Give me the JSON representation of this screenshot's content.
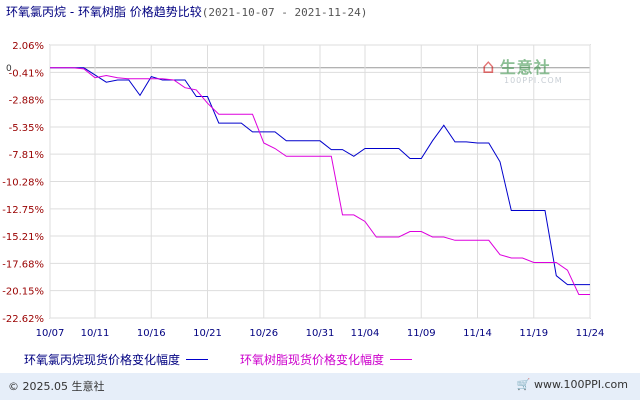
{
  "header": {
    "title": "环氧氯丙烷 - 环氧树脂 价格趋势比较",
    "date_range": "(2021-10-07 - 2021-11-24)"
  },
  "watermark": {
    "name": "生意社",
    "url": "100PPI.COM",
    "icon": "house-logo-icon"
  },
  "footer": {
    "copyright": "© 2025.05 生意社",
    "site": "www.100PPI.com",
    "site_icon": "cart-icon"
  },
  "chart_data": {
    "type": "line",
    "title": "环氧氯丙烷 - 环氧树脂 价格趋势比较",
    "subtitle": "(2021-10-07 - 2021-11-24)",
    "xlabel": "",
    "ylabel": "",
    "x_ticks": [
      "10/07",
      "10/11",
      "10/16",
      "10/21",
      "10/26",
      "10/31",
      "11/04",
      "11/09",
      "11/14",
      "11/19",
      "11/24"
    ],
    "y_ticks": [
      "2.06%",
      "-0.41%",
      "-2.88%",
      "-5.35%",
      "-7.81%",
      "-10.28%",
      "-12.75%",
      "-15.21%",
      "-17.68%",
      "-20.15%",
      "-22.62%"
    ],
    "y_ticks_values": [
      2.06,
      -0.41,
      -2.88,
      -5.35,
      -7.81,
      -10.28,
      -12.75,
      -15.21,
      -17.68,
      -20.15,
      -22.62
    ],
    "ylim": [
      -22.62,
      2.06
    ],
    "zero_marker": "0",
    "grid": true,
    "legend_position": "bottom",
    "colors": {
      "series1": "#0000cc",
      "series2": "#dd00dd",
      "grid": "#dddddd",
      "axis": "#666666",
      "tick_label": "#990000"
    },
    "series": [
      {
        "name": "环氧氯丙烷现货价格变化幅度",
        "color": "#0000cc",
        "points": [
          [
            "10/07",
            0
          ],
          [
            "10/09",
            0
          ],
          [
            "10/10",
            0
          ],
          [
            "10/12",
            -1.3
          ],
          [
            "10/13",
            -1.1
          ],
          [
            "10/14",
            -1.1
          ],
          [
            "10/15",
            -2.5
          ],
          [
            "10/16",
            -0.8
          ],
          [
            "10/17",
            -1.1
          ],
          [
            "10/18",
            -1.1
          ],
          [
            "10/19",
            -1.1
          ],
          [
            "10/20",
            -2.6
          ],
          [
            "10/21",
            -2.6
          ],
          [
            "10/22",
            -5.0
          ],
          [
            "10/23",
            -5.0
          ],
          [
            "10/24",
            -5.0
          ],
          [
            "10/25",
            -5.8
          ],
          [
            "10/26",
            -5.8
          ],
          [
            "10/27",
            -5.8
          ],
          [
            "10/28",
            -6.6
          ],
          [
            "10/29",
            -6.6
          ],
          [
            "10/30",
            -6.6
          ],
          [
            "10/31",
            -6.6
          ],
          [
            "11/01",
            -7.4
          ],
          [
            "11/02",
            -7.4
          ],
          [
            "11/03",
            -8.0
          ],
          [
            "11/04",
            -7.3
          ],
          [
            "11/05",
            -7.3
          ],
          [
            "11/06",
            -7.3
          ],
          [
            "11/07",
            -7.3
          ],
          [
            "11/08",
            -8.2
          ],
          [
            "11/09",
            -8.2
          ],
          [
            "11/10",
            -6.6
          ],
          [
            "11/11",
            -5.2
          ],
          [
            "11/12",
            -6.7
          ],
          [
            "11/13",
            -6.7
          ],
          [
            "11/14",
            -6.8
          ],
          [
            "11/15",
            -6.8
          ],
          [
            "11/16",
            -8.5
          ],
          [
            "11/17",
            -12.9
          ],
          [
            "11/18",
            -12.9
          ],
          [
            "11/19",
            -12.9
          ],
          [
            "11/20",
            -12.9
          ],
          [
            "11/21",
            -18.8
          ],
          [
            "11/22",
            -19.6
          ],
          [
            "11/23",
            -19.6
          ],
          [
            "11/24",
            -19.6
          ]
        ]
      },
      {
        "name": "环氧树脂现货价格变化幅度",
        "color": "#dd00dd",
        "points": [
          [
            "10/07",
            0
          ],
          [
            "10/09",
            0
          ],
          [
            "10/10",
            -0.1
          ],
          [
            "10/11",
            -0.9
          ],
          [
            "10/12",
            -0.7
          ],
          [
            "10/13",
            -0.9
          ],
          [
            "10/14",
            -1.0
          ],
          [
            "10/15",
            -1.0
          ],
          [
            "10/16",
            -1.0
          ],
          [
            "10/17",
            -1.0
          ],
          [
            "10/18",
            -1.1
          ],
          [
            "10/19",
            -1.8
          ],
          [
            "10/20",
            -2.0
          ],
          [
            "10/21",
            -3.2
          ],
          [
            "10/22",
            -4.2
          ],
          [
            "10/23",
            -4.2
          ],
          [
            "10/24",
            -4.2
          ],
          [
            "10/25",
            -4.2
          ],
          [
            "10/26",
            -6.8
          ],
          [
            "10/27",
            -7.3
          ],
          [
            "10/28",
            -8.0
          ],
          [
            "10/29",
            -8.0
          ],
          [
            "10/30",
            -8.0
          ],
          [
            "10/31",
            -8.0
          ],
          [
            "11/01",
            -8.0
          ],
          [
            "11/02",
            -13.3
          ],
          [
            "11/03",
            -13.3
          ],
          [
            "11/04",
            -13.9
          ],
          [
            "11/05",
            -15.3
          ],
          [
            "11/06",
            -15.3
          ],
          [
            "11/07",
            -15.3
          ],
          [
            "11/08",
            -14.8
          ],
          [
            "11/09",
            -14.8
          ],
          [
            "11/10",
            -15.3
          ],
          [
            "11/11",
            -15.3
          ],
          [
            "11/12",
            -15.6
          ],
          [
            "11/13",
            -15.6
          ],
          [
            "11/14",
            -15.6
          ],
          [
            "11/15",
            -15.6
          ],
          [
            "11/16",
            -16.9
          ],
          [
            "11/17",
            -17.2
          ],
          [
            "11/18",
            -17.2
          ],
          [
            "11/19",
            -17.6
          ],
          [
            "11/20",
            -17.6
          ],
          [
            "11/21",
            -17.6
          ],
          [
            "11/22",
            -18.3
          ],
          [
            "11/23",
            -20.5
          ],
          [
            "11/24",
            -20.5
          ]
        ]
      }
    ]
  }
}
